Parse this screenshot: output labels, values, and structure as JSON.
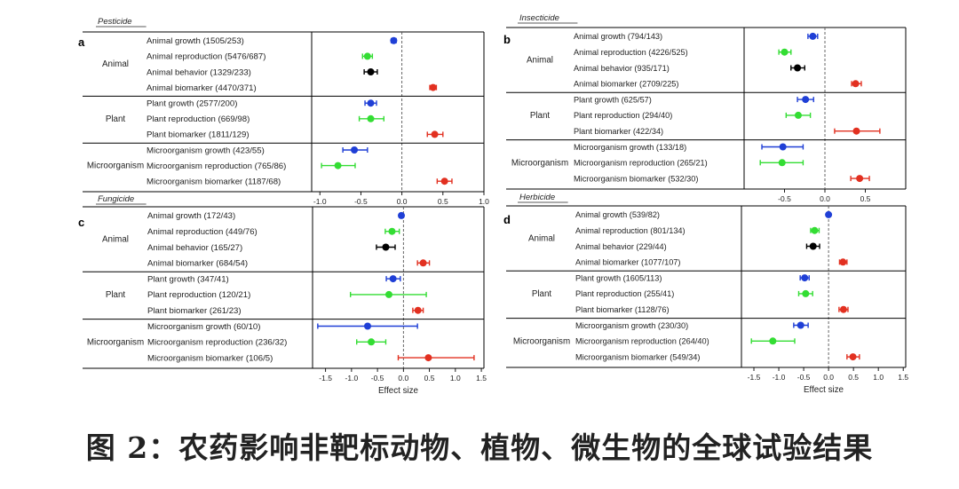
{
  "caption": "图 2：农药影响非靶标动物、植物、微生物的全球试验结果",
  "colors": {
    "growth": "#1f3fd6",
    "reproduction": "#33dd33",
    "behavior": "#000000",
    "biomarker": "#e23020",
    "frame": "#000000",
    "zero_line": "#555555"
  },
  "chart_data": [
    {
      "type": "forest",
      "panel": "a",
      "title": "Pesticide",
      "xlabel": "",
      "xlim": [
        -1.1,
        1.0
      ],
      "xticks": [
        -1.0,
        -0.5,
        0.0,
        0.5,
        1.0
      ],
      "xtick_labels": [
        "-1.0",
        "-0.5",
        "0.0",
        "0.5",
        "1.0"
      ],
      "groups": [
        {
          "name": "Animal",
          "rows": [
            {
              "label": "Animal growth (1505/253)",
              "kind": "growth",
              "effect": -0.1,
              "ci": [
                -0.13,
                -0.07
              ]
            },
            {
              "label": "Animal reproduction (5476/687)",
              "kind": "reproduction",
              "effect": -0.42,
              "ci": [
                -0.48,
                -0.36
              ]
            },
            {
              "label": "Animal behavior (1329/233)",
              "kind": "behavior",
              "effect": -0.38,
              "ci": [
                -0.46,
                -0.3
              ]
            },
            {
              "label": "Animal biomarker (4470/371)",
              "kind": "biomarker",
              "effect": 0.38,
              "ci": [
                0.34,
                0.42
              ]
            }
          ]
        },
        {
          "name": "Plant",
          "rows": [
            {
              "label": "Plant growth (2577/200)",
              "kind": "growth",
              "effect": -0.38,
              "ci": [
                -0.45,
                -0.31
              ]
            },
            {
              "label": "Plant reproduction (669/98)",
              "kind": "reproduction",
              "effect": -0.38,
              "ci": [
                -0.52,
                -0.22
              ]
            },
            {
              "label": "Plant biomarker (1811/129)",
              "kind": "biomarker",
              "effect": 0.4,
              "ci": [
                0.31,
                0.5
              ]
            }
          ]
        },
        {
          "name": "Microorganism",
          "rows": [
            {
              "label": "Microorganism growth (423/55)",
              "kind": "growth",
              "effect": -0.58,
              "ci": [
                -0.72,
                -0.42
              ]
            },
            {
              "label": "Microorganism reproduction (765/86)",
              "kind": "reproduction",
              "effect": -0.78,
              "ci": [
                -0.98,
                -0.57
              ]
            },
            {
              "label": "Microorganism biomarker (1187/68)",
              "kind": "biomarker",
              "effect": 0.52,
              "ci": [
                0.43,
                0.61
              ]
            }
          ]
        }
      ]
    },
    {
      "type": "forest",
      "panel": "b",
      "title": "Insecticide",
      "xlabel": "",
      "xlim": [
        -1.0,
        1.0
      ],
      "xticks": [
        -0.5,
        0.0,
        0.5
      ],
      "xtick_labels": [
        "-0.5",
        "0.0",
        "0.5"
      ],
      "groups": [
        {
          "name": "Animal",
          "rows": [
            {
              "label": "Animal growth (794/143)",
              "kind": "growth",
              "effect": -0.15,
              "ci": [
                -0.21,
                -0.09
              ]
            },
            {
              "label": "Animal reproduction (4226/525)",
              "kind": "reproduction",
              "effect": -0.5,
              "ci": [
                -0.57,
                -0.42
              ]
            },
            {
              "label": "Animal behavior (935/171)",
              "kind": "behavior",
              "effect": -0.34,
              "ci": [
                -0.42,
                -0.25
              ]
            },
            {
              "label": "Animal biomarker (2709/225)",
              "kind": "biomarker",
              "effect": 0.38,
              "ci": [
                0.33,
                0.45
              ]
            }
          ]
        },
        {
          "name": "Plant",
          "rows": [
            {
              "label": "Plant growth (625/57)",
              "kind": "growth",
              "effect": -0.24,
              "ci": [
                -0.34,
                -0.14
              ]
            },
            {
              "label": "Plant reproduction (294/40)",
              "kind": "reproduction",
              "effect": -0.33,
              "ci": [
                -0.48,
                -0.18
              ]
            },
            {
              "label": "Plant biomarker (422/34)",
              "kind": "biomarker",
              "effect": 0.39,
              "ci": [
                0.12,
                0.68
              ]
            }
          ]
        },
        {
          "name": "Microorganism",
          "rows": [
            {
              "label": "Microorganism growth (133/18)",
              "kind": "growth",
              "effect": -0.52,
              "ci": [
                -0.78,
                -0.27
              ]
            },
            {
              "label": "Microorganism reproduction (265/21)",
              "kind": "reproduction",
              "effect": -0.53,
              "ci": [
                -0.8,
                -0.27
              ]
            },
            {
              "label": "Microorganism biomarker (532/30)",
              "kind": "biomarker",
              "effect": 0.43,
              "ci": [
                0.32,
                0.55
              ]
            }
          ]
        }
      ]
    },
    {
      "type": "forest",
      "panel": "c",
      "title": "Fungicide",
      "xlabel": "Effect size",
      "xlim": [
        -1.75,
        1.55
      ],
      "xticks": [
        -1.5,
        -1.0,
        -0.5,
        0.0,
        0.5,
        1.0,
        1.5
      ],
      "xtick_labels": [
        "-1.5",
        "-1.0",
        "-0.5",
        "0.0",
        "0.5",
        "1.0",
        "1.5"
      ],
      "groups": [
        {
          "name": "Animal",
          "rows": [
            {
              "label": "Animal growth (172/43)",
              "kind": "growth",
              "effect": -0.04,
              "ci": [
                -0.08,
                0.0
              ]
            },
            {
              "label": "Animal reproduction (449/76)",
              "kind": "reproduction",
              "effect": -0.22,
              "ci": [
                -0.35,
                -0.08
              ]
            },
            {
              "label": "Animal behavior (165/27)",
              "kind": "behavior",
              "effect": -0.34,
              "ci": [
                -0.52,
                -0.16
              ]
            },
            {
              "label": "Animal biomarker (684/54)",
              "kind": "biomarker",
              "effect": 0.38,
              "ci": [
                0.27,
                0.5
              ]
            }
          ]
        },
        {
          "name": "Plant",
          "rows": [
            {
              "label": "Plant growth (347/41)",
              "kind": "growth",
              "effect": -0.2,
              "ci": [
                -0.33,
                -0.06
              ]
            },
            {
              "label": "Plant reproduction (120/21)",
              "kind": "reproduction",
              "effect": -0.28,
              "ci": [
                -1.02,
                0.44
              ]
            },
            {
              "label": "Plant biomarker (261/23)",
              "kind": "biomarker",
              "effect": 0.28,
              "ci": [
                0.18,
                0.38
              ]
            }
          ]
        },
        {
          "name": "Microorganism",
          "rows": [
            {
              "label": "Microorganism growth (60/10)",
              "kind": "growth",
              "effect": -0.69,
              "ci": [
                -1.65,
                0.27
              ]
            },
            {
              "label": "Microorganism reproduction (236/32)",
              "kind": "reproduction",
              "effect": -0.62,
              "ci": [
                -0.9,
                -0.34
              ]
            },
            {
              "label": "Microorganism biomarker (106/5)",
              "kind": "biomarker",
              "effect": 0.48,
              "ci": [
                -0.1,
                1.36
              ]
            }
          ]
        }
      ]
    },
    {
      "type": "forest",
      "panel": "d",
      "title": "Herbicide",
      "xlabel": "Effect size",
      "xlim": [
        -1.75,
        1.55
      ],
      "xticks": [
        -1.5,
        -1.0,
        -0.5,
        0.0,
        0.5,
        1.0,
        1.5
      ],
      "xtick_labels": [
        "-1.5",
        "-1.0",
        "-0.5",
        "0.0",
        "0.5",
        "1.0",
        "1.5"
      ],
      "groups": [
        {
          "name": "Animal",
          "rows": [
            {
              "label": "Animal growth (539/82)",
              "kind": "growth",
              "effect": 0.0,
              "ci": [
                -0.03,
                0.03
              ]
            },
            {
              "label": "Animal reproduction (801/134)",
              "kind": "reproduction",
              "effect": -0.28,
              "ci": [
                -0.36,
                -0.19
              ]
            },
            {
              "label": "Animal behavior (229/44)",
              "kind": "behavior",
              "effect": -0.31,
              "ci": [
                -0.44,
                -0.18
              ]
            },
            {
              "label": "Animal biomarker (1077/107)",
              "kind": "biomarker",
              "effect": 0.29,
              "ci": [
                0.22,
                0.37
              ]
            }
          ]
        },
        {
          "name": "Plant",
          "rows": [
            {
              "label": "Plant growth (1605/113)",
              "kind": "growth",
              "effect": -0.48,
              "ci": [
                -0.57,
                -0.39
              ]
            },
            {
              "label": "Plant reproduction (255/41)",
              "kind": "reproduction",
              "effect": -0.46,
              "ci": [
                -0.6,
                -0.32
              ]
            },
            {
              "label": "Plant biomarker (1128/76)",
              "kind": "biomarker",
              "effect": 0.3,
              "ci": [
                0.21,
                0.39
              ]
            }
          ]
        },
        {
          "name": "Microorganism",
          "rows": [
            {
              "label": "Microorganism growth (230/30)",
              "kind": "growth",
              "effect": -0.56,
              "ci": [
                -0.7,
                -0.41
              ]
            },
            {
              "label": "Microorganism reproduction (264/40)",
              "kind": "reproduction",
              "effect": -1.12,
              "ci": [
                -1.55,
                -0.68
              ]
            },
            {
              "label": "Microorganism biomarker (549/34)",
              "kind": "biomarker",
              "effect": 0.49,
              "ci": [
                0.37,
                0.62
              ]
            }
          ]
        }
      ]
    }
  ]
}
